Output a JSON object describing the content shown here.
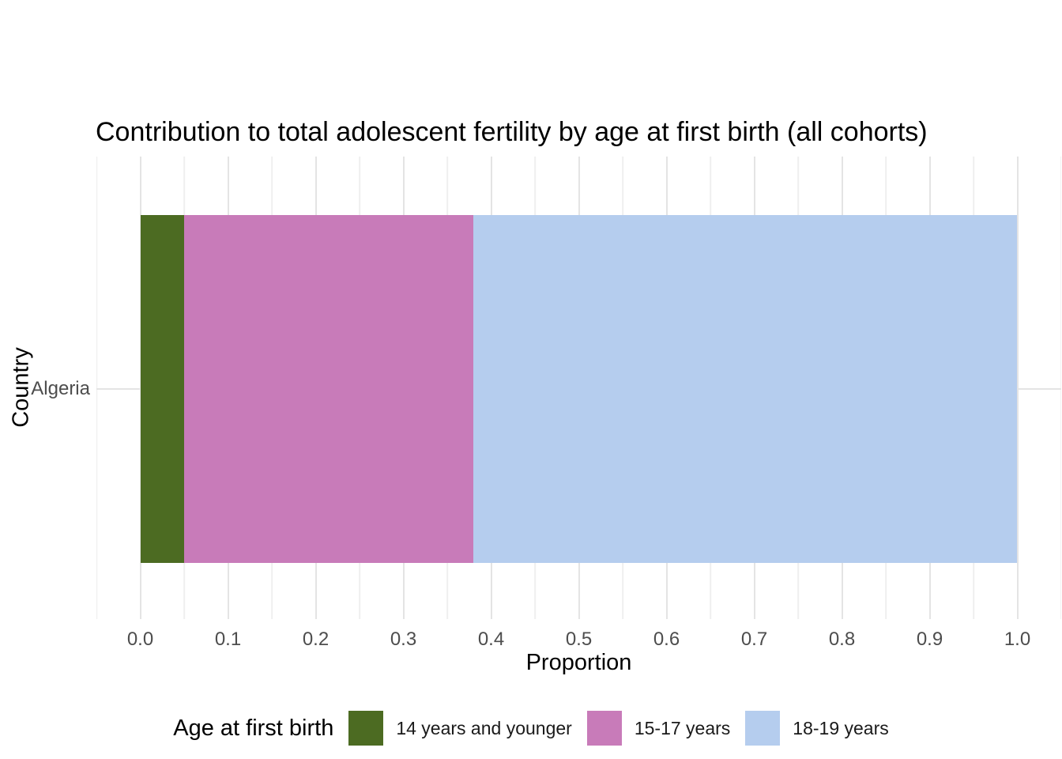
{
  "chart_data": {
    "type": "bar",
    "orientation": "horizontal",
    "stacked": true,
    "title": "Contribution to total adolescent fertility by age at first birth (all cohorts)",
    "xlabel": "Proportion",
    "ylabel": "Country",
    "categories": [
      "Algeria"
    ],
    "series": [
      {
        "name": "14 years and younger",
        "color": "#4c6b22",
        "values": [
          0.05
        ]
      },
      {
        "name": "15-17 years",
        "color": "#c87bb9",
        "values": [
          0.33
        ]
      },
      {
        "name": "18-19 years",
        "color": "#b5cdee",
        "values": [
          0.62
        ]
      }
    ],
    "xlim": [
      -0.05,
      1.05
    ],
    "x_ticks": [
      0.0,
      0.1,
      0.2,
      0.3,
      0.4,
      0.5,
      0.6,
      0.7,
      0.8,
      0.9,
      1.0
    ],
    "x_tick_labels": [
      "0.0",
      "0.1",
      "0.2",
      "0.3",
      "0.4",
      "0.5",
      "0.6",
      "0.7",
      "0.8",
      "0.9",
      "1.0"
    ],
    "x_minor_ticks": [
      -0.05,
      0.05,
      0.15,
      0.25,
      0.35,
      0.45,
      0.55,
      0.65,
      0.75,
      0.85,
      0.95,
      1.05
    ],
    "grid": "on",
    "legend": {
      "title": "Age at first birth",
      "position": "bottom",
      "entries": [
        "14 years and younger",
        "15-17 years",
        "18-19 years"
      ]
    }
  }
}
